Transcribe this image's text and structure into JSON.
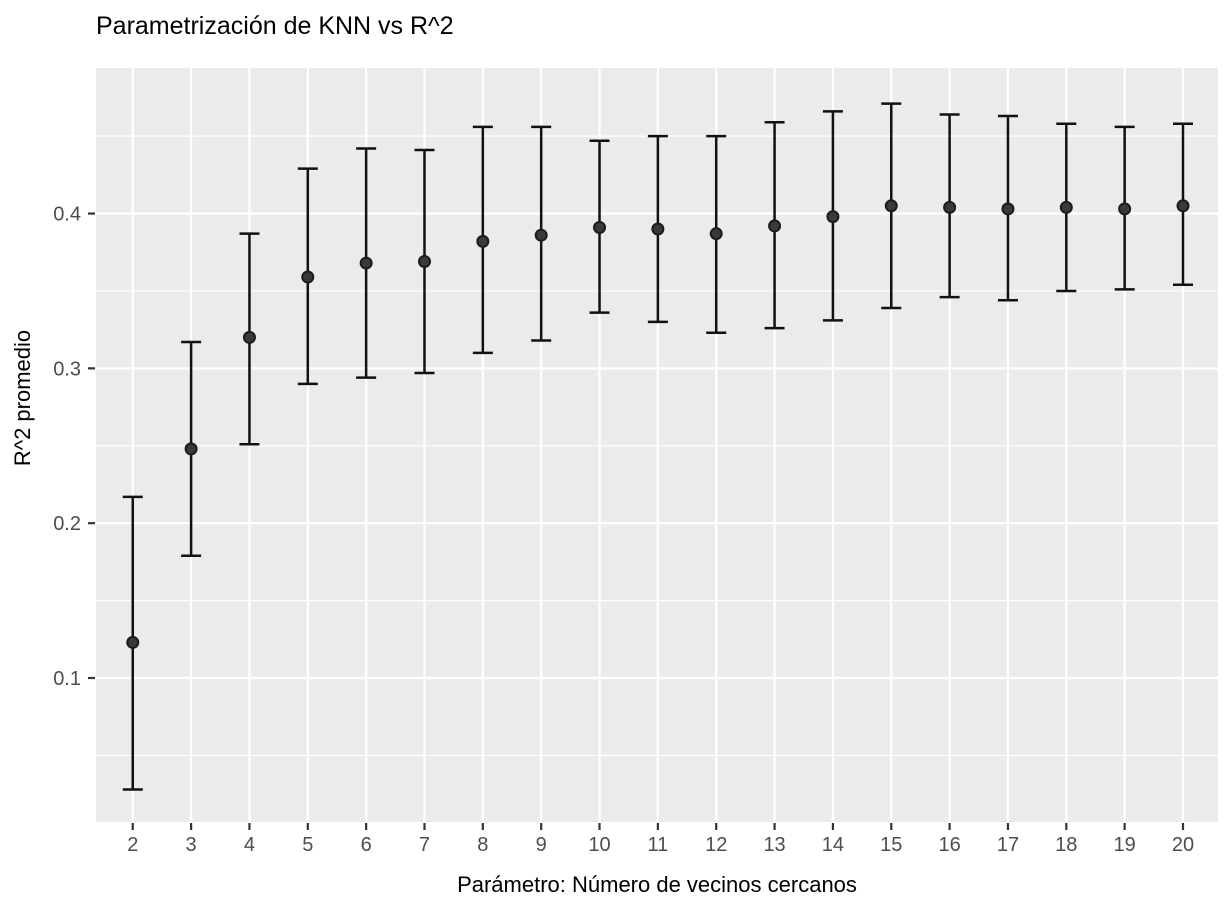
{
  "chart_data": {
    "type": "scatter",
    "title": "Parametrización de KNN vs R^2",
    "xlabel": "Parámetro: Número de vecinos cercanos",
    "ylabel": "R^2 promedio",
    "x": [
      2,
      3,
      4,
      5,
      6,
      7,
      8,
      9,
      10,
      11,
      12,
      13,
      14,
      15,
      16,
      17,
      18,
      19,
      20
    ],
    "series": [
      {
        "name": "R^2 promedio",
        "values": [
          0.123,
          0.248,
          0.32,
          0.359,
          0.368,
          0.369,
          0.382,
          0.386,
          0.391,
          0.39,
          0.387,
          0.392,
          0.398,
          0.405,
          0.404,
          0.403,
          0.404,
          0.403,
          0.405
        ]
      }
    ],
    "error_bars": {
      "lower": [
        0.028,
        0.179,
        0.251,
        0.29,
        0.294,
        0.297,
        0.31,
        0.318,
        0.336,
        0.33,
        0.323,
        0.326,
        0.331,
        0.339,
        0.346,
        0.344,
        0.35,
        0.351,
        0.354
      ],
      "upper": [
        0.217,
        0.317,
        0.387,
        0.429,
        0.442,
        0.441,
        0.456,
        0.456,
        0.447,
        0.45,
        0.45,
        0.459,
        0.466,
        0.471,
        0.464,
        0.463,
        0.458,
        0.456,
        0.458
      ]
    },
    "xticks": [
      2,
      3,
      4,
      5,
      6,
      7,
      8,
      9,
      10,
      11,
      12,
      13,
      14,
      15,
      16,
      17,
      18,
      19,
      20
    ],
    "yticks": [
      0.1,
      0.2,
      0.3,
      0.4
    ],
    "y_minor_ticks": [
      0.05,
      0.15,
      0.25,
      0.35,
      0.45
    ],
    "xlim": [
      1.37,
      20.6
    ],
    "ylim": [
      0.007,
      0.494
    ],
    "grid": {
      "major": true,
      "minor_y": true,
      "minor_x": false
    },
    "legend": "none",
    "style": {
      "panel_bg": "#EBEBEB",
      "grid_color": "#FFFFFF",
      "point_fill": "#3A3A3A",
      "point_stroke": "#1C1C1C",
      "errorbar_color": "#111111",
      "tick_color": "#333333",
      "tick_label_color": "#4D4D4D",
      "title_color": "#000000"
    }
  }
}
